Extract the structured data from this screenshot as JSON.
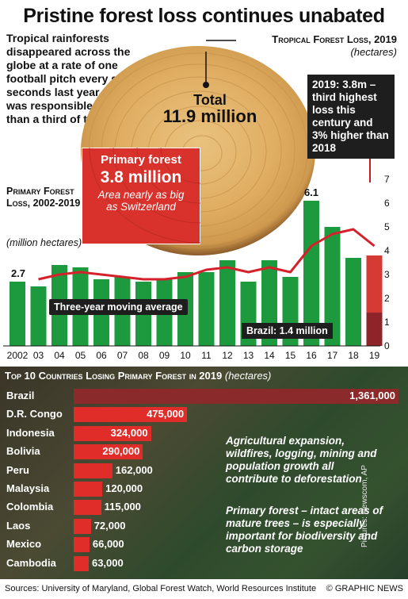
{
  "header": {
    "title": "Pristine forest loss continues unabated",
    "intro": "Tropical rainforests disappeared across the globe at a rate of one football pitch every six seconds last year. Brazil was responsible for more than a third of the total"
  },
  "tropical": {
    "title": "Tropical Forest Loss, 2019",
    "unit": "(hectares)",
    "total_label": "Total",
    "total_value": "11.9 million",
    "primary_title": "Primary forest",
    "primary_value": "3.8 million",
    "primary_note": "Area nearly as big as Switzerland"
  },
  "callout": {
    "text": "2019: 3.8m – third highest loss this century and 3% higher than 2018"
  },
  "primary_chart_header": {
    "title": "Primary Forest Loss, 2002-2019",
    "unit": "(million hectares)"
  },
  "labels": {
    "moving_average": "Three-year moving average",
    "brazil": "Brazil: 1.4 million",
    "first_value": "2.7",
    "peak_value": "6.1",
    "watermark": "GRAPHIC NEWS"
  },
  "colors": {
    "bar_green": "#1e9a3e",
    "bar_2019": "#d63a34",
    "brazil_segment": "#8e2329",
    "avg_line": "#d4212b",
    "country_bar": "#e02d2a",
    "brazil_bar": "#8a2a2a"
  },
  "chart_data": [
    {
      "type": "bar",
      "title": "Primary Forest Loss, 2002-2019",
      "ylabel": "(million hectares)",
      "ylim": [
        0,
        7
      ],
      "yticks": [
        0,
        1,
        2,
        3,
        4,
        5,
        6,
        7
      ],
      "categories": [
        "2002",
        "03",
        "04",
        "05",
        "06",
        "07",
        "08",
        "09",
        "10",
        "11",
        "12",
        "13",
        "14",
        "15",
        "16",
        "17",
        "18",
        "19"
      ],
      "series": [
        {
          "name": "Primary forest loss",
          "values": [
            2.7,
            2.5,
            3.4,
            3.3,
            2.8,
            2.9,
            2.7,
            2.8,
            3.1,
            3.1,
            3.6,
            2.7,
            3.6,
            2.9,
            6.1,
            5.0,
            3.7,
            3.8
          ]
        },
        {
          "name": "Three-year moving average",
          "values": [
            null,
            2.8,
            3.0,
            3.1,
            3.0,
            2.9,
            2.8,
            2.8,
            2.9,
            3.2,
            3.3,
            3.1,
            3.3,
            3.1,
            4.2,
            4.7,
            4.9,
            4.2
          ]
        },
        {
          "name": "Brazil",
          "values": [
            null,
            null,
            null,
            null,
            null,
            null,
            null,
            null,
            null,
            null,
            null,
            null,
            null,
            null,
            null,
            null,
            null,
            1.4
          ]
        }
      ],
      "grid": false
    },
    {
      "type": "bar",
      "title": "Top 10 Countries Losing Primary Forest in 2019",
      "unit": "(hectares)",
      "categories": [
        "Brazil",
        "D.R. Congo",
        "Indonesia",
        "Bolivia",
        "Peru",
        "Malaysia",
        "Colombia",
        "Laos",
        "Mexico",
        "Cambodia"
      ],
      "values": [
        1361000,
        475000,
        324000,
        290000,
        162000,
        120000,
        115000,
        72000,
        66000,
        63000
      ],
      "value_labels": [
        "1,361,000",
        "475,000",
        "324,000",
        "290,000",
        "162,000",
        "120,000",
        "115,000",
        "72,000",
        "66,000",
        "63,000"
      ]
    }
  ],
  "bottom": {
    "title": "Top 10 Countries Losing Primary Forest in 2019",
    "unit": "(hectares)",
    "note1": "Agricultural expansion, wildfires, logging, mining and population growth all contribute to deforestation",
    "note2": "Primary forest – intact areas of mature trees – is especially important for biodiversity and carbon storage",
    "photo_credit": "Pictures: Newscom, AP"
  },
  "footer": {
    "sources": "Sources: University of Maryland, Global Forest Watch, World Resources Institute",
    "credit": "© GRAPHIC NEWS"
  }
}
